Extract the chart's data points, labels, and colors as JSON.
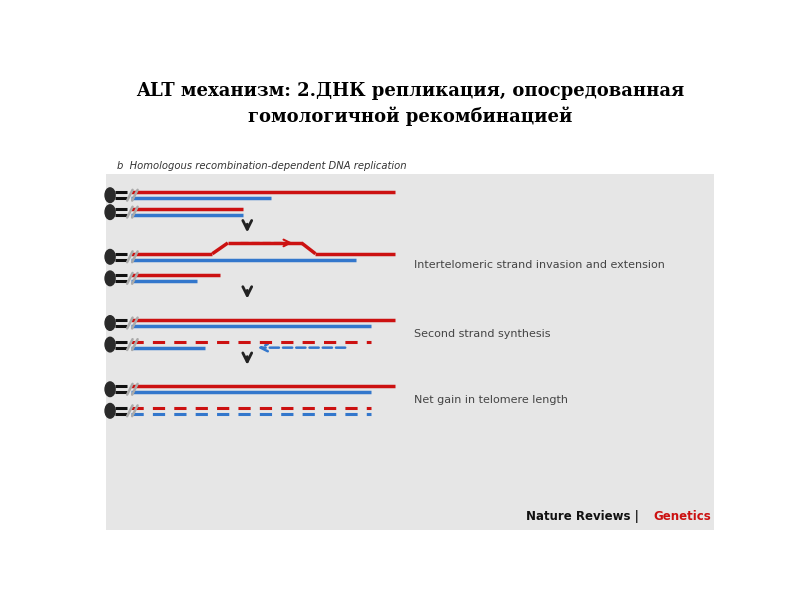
{
  "title_line1": "ALT механизм: 2.ДНК репликация, опосредованная",
  "title_line2": "гомологичной рекомбинацией",
  "subtitle": "b  Homologous recombination-dependent DNA replication",
  "bg_color": "#e6e6e6",
  "white_bg": "#ffffff",
  "red_color": "#cc1111",
  "blue_color": "#3377cc",
  "arrow_color": "#222222",
  "label1": "Intertelomeric strand invasion and extension",
  "label2": "Second strand synthesis",
  "label3": "Net gain in telomere length",
  "nature_black": "Nature Reviews | ",
  "nature_red": "Genetics",
  "fig_width": 8.0,
  "fig_height": 6.0,
  "dpi": 100
}
